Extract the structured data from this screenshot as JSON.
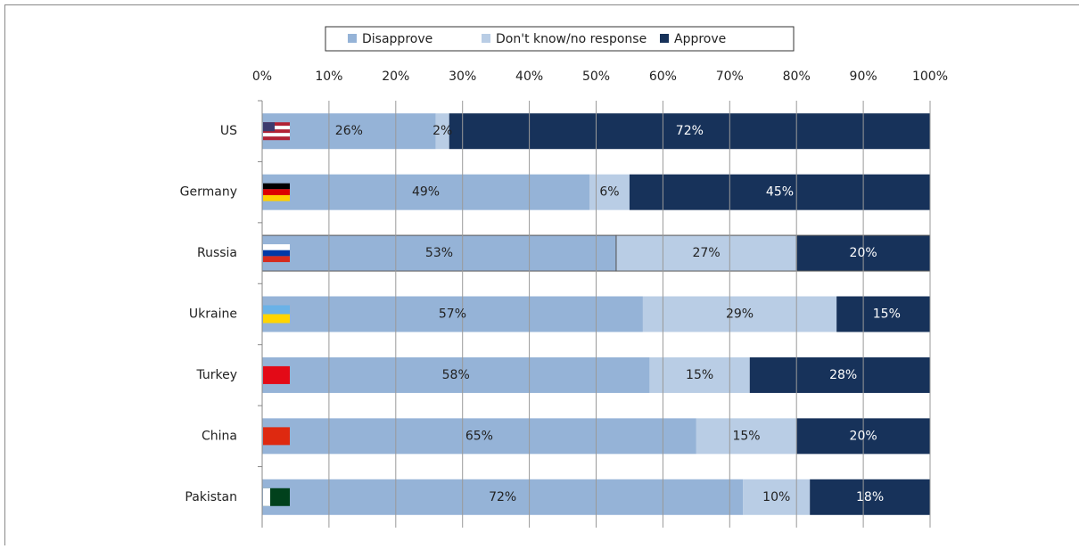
{
  "chart_data": {
    "type": "stacked_bar_horizontal",
    "categories": [
      "US",
      "Germany",
      "Russia",
      "Ukraine",
      "Turkey",
      "China",
      "Pakistan"
    ],
    "series": [
      {
        "name": "Disapprove",
        "color": "#95b3d7",
        "values": [
          26,
          49,
          53,
          57,
          58,
          65,
          72
        ],
        "value_labels": [
          "26%",
          "49%",
          "53%",
          "57%",
          "58%",
          "65%",
          "72%"
        ]
      },
      {
        "name": "Don't know/no response",
        "color": "#b9cde5",
        "values": [
          2,
          6,
          27,
          29,
          15,
          15,
          10
        ],
        "value_labels": [
          "2%",
          "6%",
          "27%",
          "29%",
          "15%",
          "15%",
          "10%"
        ]
      },
      {
        "name": "Approve",
        "color": "#17325a",
        "values": [
          72,
          45,
          20,
          15,
          28,
          20,
          18
        ],
        "value_labels": [
          "72%",
          "45%",
          "20%",
          "15%",
          "28%",
          "20%",
          "18%"
        ]
      }
    ],
    "xlim": [
      0,
      100
    ],
    "xticks": [
      {
        "value": 0,
        "label": "0%"
      },
      {
        "value": 10,
        "label": "10%"
      },
      {
        "value": 20,
        "label": "20%"
      },
      {
        "value": 30,
        "label": "30%"
      },
      {
        "value": 40,
        "label": "40%"
      },
      {
        "value": 50,
        "label": "50%"
      },
      {
        "value": 60,
        "label": "60%"
      },
      {
        "value": 70,
        "label": "70%"
      },
      {
        "value": 80,
        "label": "80%"
      },
      {
        "value": 90,
        "label": "90%"
      },
      {
        "value": 100,
        "label": "100%"
      }
    ],
    "grid": true,
    "legend": "top"
  }
}
